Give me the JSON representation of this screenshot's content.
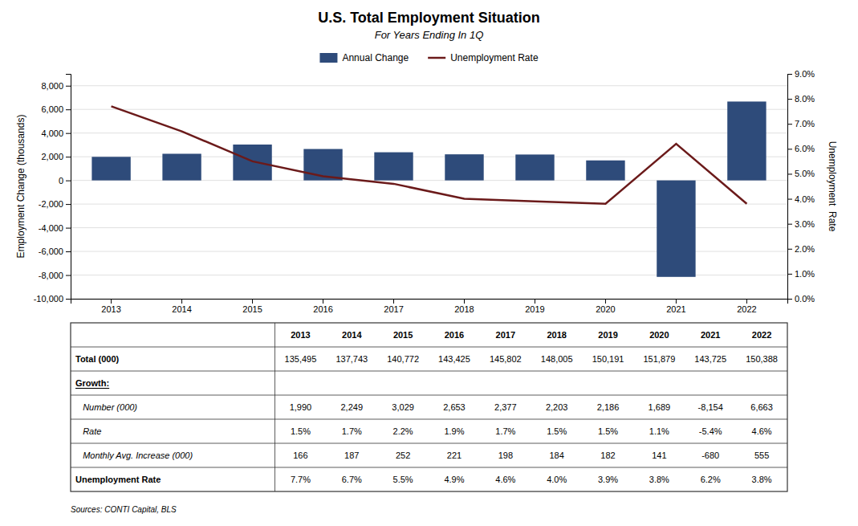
{
  "chart_data": {
    "type": "bar",
    "title": "U.S. Total Employment  Situation",
    "subtitle": "For Years Ending In 1Q",
    "categories": [
      "2013",
      "2014",
      "2015",
      "2016",
      "2017",
      "2018",
      "2019",
      "2020",
      "2021",
      "2022"
    ],
    "series": [
      {
        "name": "Annual Change",
        "type": "bar",
        "color": "#2E4B7A",
        "values": [
          1990,
          2249,
          3029,
          2653,
          2377,
          2203,
          2186,
          1689,
          -8154,
          6663
        ]
      },
      {
        "name": "Unemployment Rate",
        "type": "line",
        "color": "#6B1A1A",
        "axis": "y2",
        "values": [
          7.7,
          6.7,
          5.5,
          4.9,
          4.6,
          4.0,
          3.9,
          3.8,
          6.2,
          3.8
        ]
      }
    ],
    "ylabel": "Employment Change (thousands)",
    "y2label": "Unemployment  Rate",
    "ylim": [
      -10000,
      9000
    ],
    "yticks": [
      {
        "value": -10000,
        "label": "-10,000"
      },
      {
        "value": -8000,
        "label": "-8,000"
      },
      {
        "value": -6000,
        "label": "-6,000"
      },
      {
        "value": -4000,
        "label": "-4,000"
      },
      {
        "value": -2000,
        "label": "-2,000"
      },
      0,
      {
        "value": 2000,
        "label": "2,000"
      },
      {
        "value": 4000,
        "label": "4,000"
      },
      {
        "value": 6000,
        "label": "6,000"
      },
      {
        "value": 8000,
        "label": "8,000"
      }
    ],
    "y2lim": [
      0.0,
      9.0
    ],
    "y2ticks": [
      {
        "value": 0.0,
        "label": "0.0%"
      },
      {
        "value": 1.0,
        "label": "1.0%"
      },
      {
        "value": 2.0,
        "label": "2.0%"
      },
      {
        "value": 3.0,
        "label": "3.0%"
      },
      {
        "value": 4.0,
        "label": "4.0%"
      },
      {
        "value": 5.0,
        "label": "5.0%"
      },
      {
        "value": 6.0,
        "label": "6.0%"
      },
      {
        "value": 7.0,
        "label": "7.0%"
      },
      {
        "value": 8.0,
        "label": "8.0%"
      },
      {
        "value": 9.0,
        "label": "9.0%"
      }
    ],
    "grid": true,
    "legend": "top",
    "table_rows": [
      [
        null,
        "2013",
        "2014",
        "2015",
        "2016",
        "2017",
        "2018",
        "2019",
        "2020",
        "2021",
        "2022"
      ],
      [
        "Total (000)",
        "135,495",
        "137,743",
        "140,772",
        "143,425",
        "145,802",
        "148,005",
        "150,191",
        "151,879",
        "143,725",
        "150,388"
      ],
      [
        "Growth:",
        null,
        null,
        null,
        null,
        null,
        null,
        null,
        null,
        null,
        null
      ],
      [
        "   Number (000)",
        "1,990",
        "2,249",
        "3,029",
        "2,653",
        "2,377",
        "2,203",
        "2,186",
        "1,689",
        "-8,154",
        "6,663"
      ],
      [
        "   Rate",
        "1.5%",
        "1.7%",
        "2.2%",
        "1.9%",
        "1.7%",
        "1.5%",
        "1.5%",
        "1.1%",
        "-5.4%",
        "4.6%"
      ],
      [
        "   Monthly Avg. Increase (000)",
        "166",
        "187",
        "252",
        "221",
        "198",
        "184",
        "182",
        "141",
        "-680",
        "555"
      ],
      [
        "Unemployment Rate",
        "7.7%",
        "6.7%",
        "5.5%",
        "4.9%",
        "4.6%",
        "4.0%",
        "3.9%",
        "3.8%",
        "6.2%",
        "3.8%"
      ]
    ],
    "source": "Sources: CONTI Capital, BLS"
  }
}
